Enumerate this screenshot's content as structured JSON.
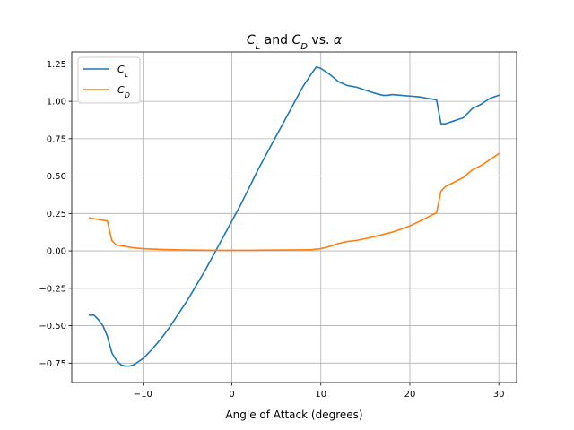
{
  "chart_data": {
    "type": "line",
    "title": "C_L and C_D vs. α",
    "title_parts": [
      {
        "text": "C",
        "italic": true
      },
      {
        "text": "L",
        "italic": true,
        "sub": true
      },
      {
        "text": " and ",
        "italic": false
      },
      {
        "text": "C",
        "italic": true
      },
      {
        "text": "D",
        "italic": true,
        "sub": true
      },
      {
        "text": " vs. ",
        "italic": false
      },
      {
        "text": "α",
        "italic": true
      }
    ],
    "xlabel": "Angle of Attack (degrees)",
    "ylabel": "",
    "xlim": [
      -18,
      32
    ],
    "ylim": [
      -0.88,
      1.33
    ],
    "xticks": [
      -10,
      0,
      10,
      20,
      30
    ],
    "yticks": [
      -0.75,
      -0.5,
      -0.25,
      0.0,
      0.25,
      0.5,
      0.75,
      1.0,
      1.25
    ],
    "xtick_labels": [
      "−10",
      "0",
      "10",
      "20",
      "30"
    ],
    "ytick_labels": [
      "−0.75",
      "−0.50",
      "−0.25",
      "0.00",
      "0.25",
      "0.50",
      "0.75",
      "1.00",
      "1.25"
    ],
    "grid": true,
    "legend_position": "upper-left",
    "series": [
      {
        "name": "C_L",
        "name_main": "C",
        "name_sub": "L",
        "color": "#1f77b4",
        "x": [
          -16,
          -15.5,
          -15,
          -14.5,
          -14,
          -13.5,
          -13,
          -12.5,
          -12,
          -11.5,
          -11,
          -10.5,
          -10,
          -9,
          -8,
          -7,
          -6,
          -5,
          -4,
          -3,
          -2,
          -1,
          0,
          1,
          2,
          3,
          4,
          5,
          6,
          7,
          8,
          9,
          9.5,
          10,
          10.5,
          11,
          12,
          13,
          14,
          15,
          16,
          17,
          17.5,
          18,
          19,
          20,
          21,
          22,
          23,
          23.5,
          24,
          25,
          26,
          27,
          28,
          29,
          30
        ],
        "y": [
          -0.43,
          -0.43,
          -0.46,
          -0.5,
          -0.57,
          -0.68,
          -0.73,
          -0.76,
          -0.77,
          -0.77,
          -0.76,
          -0.74,
          -0.72,
          -0.66,
          -0.59,
          -0.51,
          -0.42,
          -0.33,
          -0.23,
          -0.13,
          -0.02,
          0.09,
          0.2,
          0.31,
          0.43,
          0.55,
          0.66,
          0.77,
          0.88,
          0.99,
          1.1,
          1.19,
          1.23,
          1.22,
          1.2,
          1.18,
          1.13,
          1.105,
          1.095,
          1.075,
          1.055,
          1.04,
          1.04,
          1.045,
          1.04,
          1.035,
          1.03,
          1.02,
          1.01,
          0.85,
          0.85,
          0.87,
          0.89,
          0.95,
          0.98,
          1.02,
          1.04
        ]
      },
      {
        "name": "C_D",
        "name_main": "C",
        "name_sub": "D",
        "color": "#ff7f0e",
        "x": [
          -16,
          -15,
          -14,
          -13.5,
          -13,
          -12,
          -11,
          -10,
          -8,
          -6,
          -4,
          -2,
          0,
          2,
          4,
          6,
          8,
          9,
          10,
          11,
          12,
          13,
          14,
          15,
          16,
          17,
          18,
          19,
          20,
          21,
          22,
          23,
          23.5,
          24,
          25,
          26,
          27,
          28,
          29,
          30
        ],
        "y": [
          0.22,
          0.21,
          0.2,
          0.07,
          0.04,
          0.03,
          0.02,
          0.015,
          0.01,
          0.007,
          0.005,
          0.004,
          0.004,
          0.004,
          0.005,
          0.006,
          0.007,
          0.008,
          0.015,
          0.03,
          0.05,
          0.063,
          0.07,
          0.082,
          0.095,
          0.11,
          0.125,
          0.145,
          0.167,
          0.195,
          0.225,
          0.255,
          0.4,
          0.43,
          0.46,
          0.49,
          0.54,
          0.57,
          0.61,
          0.65
        ]
      }
    ]
  }
}
